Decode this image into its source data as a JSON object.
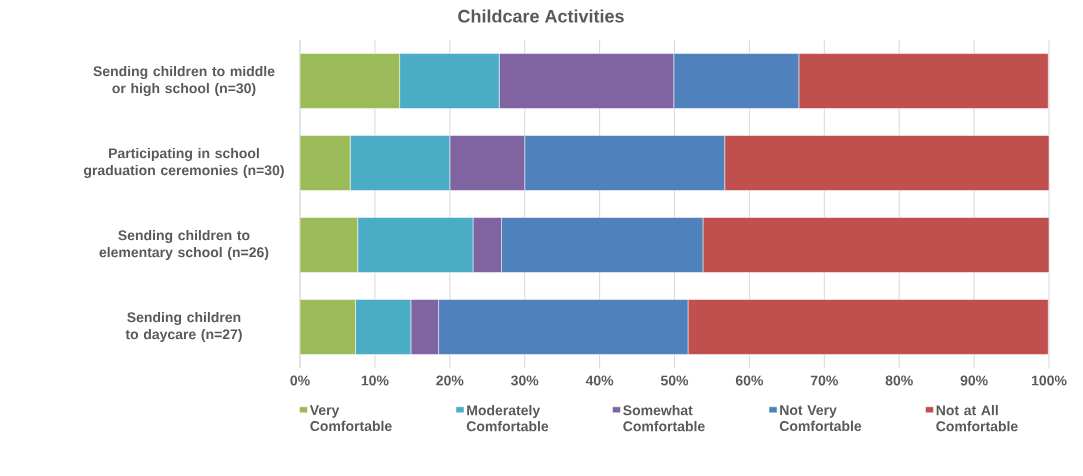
{
  "chart_data": {
    "type": "bar",
    "orientation": "horizontal",
    "stacked": true,
    "title": "Childcare Activities",
    "categories": [
      "Sending children to middle or high school (n=30)",
      "Participating in school graduation ceremonies (n=30)",
      "Sending children to elementary school (n=26)",
      "Sending children to daycare (n=27)"
    ],
    "series": [
      {
        "name": "Very Comfortable",
        "color": "#9bbb59",
        "values": [
          13.3,
          6.7,
          7.7,
          7.4
        ]
      },
      {
        "name": "Moderately Comfortable",
        "color": "#4bacc6",
        "values": [
          13.3,
          13.3,
          15.4,
          7.4
        ]
      },
      {
        "name": "Somewhat Comfortable",
        "color": "#8064a2",
        "values": [
          23.3,
          10.0,
          3.8,
          3.7
        ]
      },
      {
        "name": "Not Very Comfortable",
        "color": "#4f81bd",
        "values": [
          16.7,
          26.7,
          26.9,
          33.3
        ]
      },
      {
        "name": "Not at All Comfortable",
        "color": "#c0504d",
        "values": [
          33.3,
          43.3,
          46.2,
          48.1
        ]
      }
    ],
    "xlim": [
      0,
      100
    ],
    "xticks": [
      {
        "value": 0,
        "label": "0%"
      },
      {
        "value": 10,
        "label": "10%"
      },
      {
        "value": 20,
        "label": "20%"
      },
      {
        "value": 30,
        "label": "30%"
      },
      {
        "value": 40,
        "label": "40%"
      },
      {
        "value": 50,
        "label": "50%"
      },
      {
        "value": 60,
        "label": "60%"
      },
      {
        "value": 70,
        "label": "70%"
      },
      {
        "value": 80,
        "label": "80%"
      },
      {
        "value": 90,
        "label": "90%"
      },
      {
        "value": 100,
        "label": "100%"
      }
    ],
    "grid": "x",
    "legend": "bottom"
  }
}
